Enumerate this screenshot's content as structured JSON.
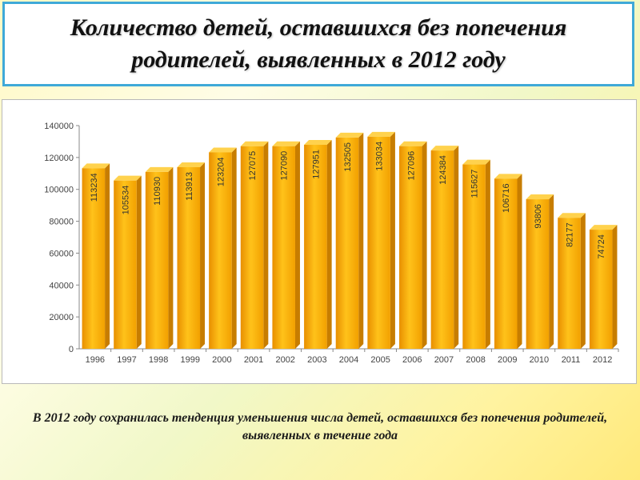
{
  "title": "Количество детей, оставшихся без попечения родителей, выявленных в 2012 году",
  "note": "В 2012 году сохранилась тенденция уменьшения числа детей, оставшихся без попечения родителей, выявленных в течение года",
  "colors": {
    "title_border": "#3fa9d8",
    "bar_front": "#f7a800",
    "bar_top": "#ffd24d",
    "bar_side": "#c77d00"
  },
  "chart_data": {
    "type": "bar",
    "categories": [
      "1996",
      "1997",
      "1998",
      "1999",
      "2000",
      "2001",
      "2002",
      "2003",
      "2004",
      "2005",
      "2006",
      "2007",
      "2008",
      "2009",
      "2010",
      "2011",
      "2012"
    ],
    "values": [
      113234,
      105534,
      110930,
      113913,
      123204,
      127075,
      127090,
      127951,
      132505,
      133034,
      127096,
      124384,
      115627,
      106716,
      93806,
      82177,
      74724
    ],
    "title": "",
    "xlabel": "",
    "ylabel": "",
    "ylim": [
      0,
      140000
    ],
    "yticks": [
      "0",
      "20000",
      "40000",
      "60000",
      "80000",
      "100000",
      "120000",
      "140000"
    ],
    "grid": false,
    "legend": "none",
    "value_labels": "vertical, inside bars"
  }
}
